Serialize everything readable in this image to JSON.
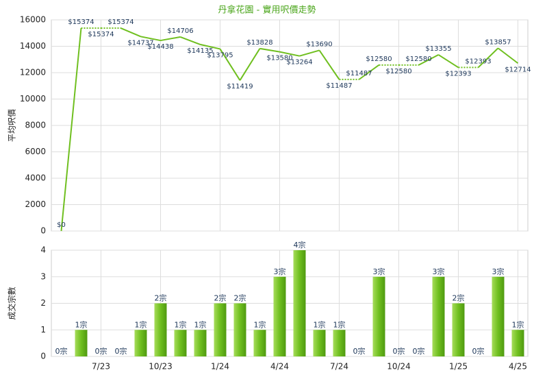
{
  "title": "丹拿花園 - 實用呎價走勢",
  "chart_data": [
    {
      "type": "line",
      "ylabel": "平均呎價",
      "color": "#6fbf1f",
      "grid": true,
      "values": [
        0,
        15374,
        15374,
        15374,
        14737,
        14438,
        14706,
        14135,
        13795,
        11419,
        13828,
        13580,
        13264,
        13690,
        11487,
        11487,
        12580,
        12580,
        12580,
        13355,
        12393,
        12393,
        13857,
        12714
      ],
      "value_labels": [
        "$0",
        "$15374",
        "$15374",
        "$15374",
        "$14737",
        "$14438",
        "$14706",
        "$14135",
        "$13795",
        "$11419",
        "$13828",
        "$13580",
        "$13264",
        "$13690",
        "$11487",
        "$11487",
        "$12580",
        "$12580",
        "$12580",
        "$13355",
        "$12393",
        "$12393",
        "$13857",
        "$12714"
      ],
      "ylim": [
        0,
        16000
      ],
      "yticks": [
        0,
        2000,
        4000,
        6000,
        8000,
        10000,
        12000,
        14000,
        16000
      ]
    },
    {
      "type": "bar",
      "ylabel": "成交宗數",
      "color": "#7cc32a",
      "grid": true,
      "categories": [
        null,
        null,
        "7/23",
        null,
        null,
        "10/23",
        null,
        null,
        "1/24",
        null,
        null,
        "4/24",
        null,
        null,
        "7/24",
        null,
        null,
        "10/24",
        null,
        null,
        "1/25",
        null,
        null,
        "4/25"
      ],
      "values": [
        0,
        1,
        0,
        0,
        1,
        2,
        1,
        1,
        2,
        2,
        1,
        3,
        4,
        1,
        1,
        0,
        3,
        0,
        0,
        3,
        2,
        0,
        3,
        1
      ],
      "value_labels": [
        "0宗",
        "1宗",
        "0宗",
        "0宗",
        "1宗",
        "2宗",
        "1宗",
        "1宗",
        "2宗",
        "2宗",
        "1宗",
        "3宗",
        "4宗",
        "1宗",
        "1宗",
        "0宗",
        "3宗",
        "0宗",
        "0宗",
        "3宗",
        "2宗",
        "0宗",
        "3宗",
        "1宗"
      ],
      "ylim": [
        0,
        4
      ],
      "yticks": [
        0,
        1,
        2,
        3,
        4
      ]
    }
  ]
}
